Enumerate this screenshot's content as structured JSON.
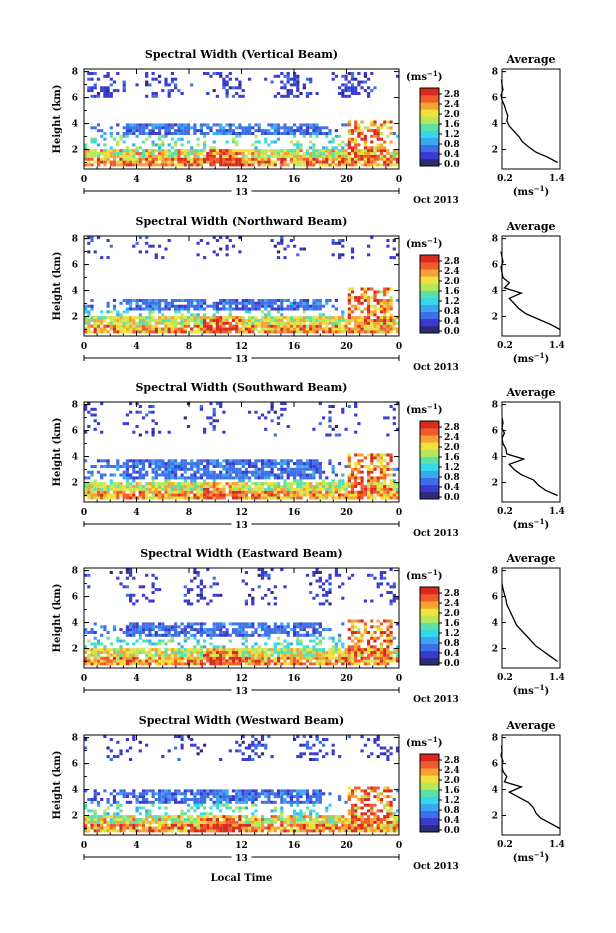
{
  "colors": {
    "scale": [
      "#2b2b77",
      "#3a3ad0",
      "#3f6fe8",
      "#3aa8f0",
      "#35d7e8",
      "#5de0a8",
      "#b8e85a",
      "#f2e13a",
      "#f7a133",
      "#f15b2c",
      "#d92a1e"
    ]
  },
  "labels": {
    "height_axis": "Height (km)",
    "unit": "(ms",
    "unit_sup": "−1",
    "unit_close": ")",
    "average_title": "Average",
    "date": "Oct 2013",
    "day": "13",
    "local_time": "Local Time",
    "cbar_ticks": [
      "2.8",
      "2.4",
      "2.0",
      "1.6",
      "1.2",
      "0.8",
      "0.4",
      "0.0"
    ]
  },
  "chart_data": [
    {
      "type": "heatmap",
      "title": "Spectral Width (Vertical Beam)",
      "xlabel": "",
      "ylabel": "Height (km)",
      "x_ticks": [
        "0",
        "4",
        "8",
        "12",
        "16",
        "20",
        "0"
      ],
      "y_ticks": [
        "8",
        "6",
        "4",
        "2"
      ],
      "xlim": [
        0,
        24
      ],
      "ylim": [
        0.5,
        8.2
      ],
      "colorbar": {
        "unit": "ms^-1",
        "range": [
          0.0,
          2.8
        ]
      },
      "average_profile": {
        "xlim": [
          0.2,
          1.4
        ],
        "ylim": [
          0.5,
          8.2
        ],
        "x_ticks": [
          "0.2",
          "1.4"
        ],
        "y_ticks": [
          "8",
          "6",
          "4",
          "2"
        ],
        "height": [
          1.0,
          1.4,
          1.8,
          2.2,
          2.6,
          3.0,
          3.4,
          3.8,
          4.2,
          4.6,
          5.0,
          5.4,
          5.8,
          6.2,
          6.6,
          7.0,
          7.4
        ],
        "width": [
          1.35,
          1.15,
          0.9,
          0.75,
          0.62,
          0.55,
          0.45,
          0.35,
          0.3,
          0.32,
          0.28,
          0.25,
          0.2,
          0.18,
          0.22,
          0.2,
          0.19
        ]
      }
    },
    {
      "type": "heatmap",
      "title": "Spectral Width (Northward Beam)",
      "xlabel": "",
      "ylabel": "Height (km)",
      "x_ticks": [
        "0",
        "4",
        "8",
        "12",
        "16",
        "20",
        "0"
      ],
      "y_ticks": [
        "8",
        "6",
        "4",
        "2"
      ],
      "xlim": [
        0,
        24
      ],
      "ylim": [
        0.5,
        8.2
      ],
      "colorbar": {
        "unit": "ms^-1",
        "range": [
          0.0,
          2.8
        ]
      },
      "average_profile": {
        "xlim": [
          0.2,
          1.4
        ],
        "ylim": [
          0.5,
          8.2
        ],
        "x_ticks": [
          "0.2",
          "1.4"
        ],
        "y_ticks": [
          "8",
          "6",
          "4",
          "2"
        ],
        "height": [
          1.0,
          1.4,
          1.8,
          2.2,
          2.6,
          3.0,
          3.4,
          3.8,
          4.2,
          4.6,
          5.0,
          5.4,
          5.8,
          6.2,
          6.6,
          7.0
        ],
        "width": [
          1.4,
          1.2,
          0.95,
          0.7,
          0.55,
          0.45,
          0.35,
          0.6,
          0.25,
          0.35,
          0.22,
          0.2,
          0.18,
          0.22,
          0.2,
          0.18
        ]
      }
    },
    {
      "type": "heatmap",
      "title": "Spectral Width (Southward Beam)",
      "xlabel": "",
      "ylabel": "Height (km)",
      "x_ticks": [
        "0",
        "4",
        "8",
        "12",
        "16",
        "20",
        "0"
      ],
      "y_ticks": [
        "8",
        "6",
        "4",
        "2"
      ],
      "xlim": [
        0,
        24
      ],
      "ylim": [
        0.5,
        8.2
      ],
      "colorbar": {
        "unit": "ms^-1",
        "range": [
          0.0,
          2.8
        ]
      },
      "average_profile": {
        "xlim": [
          0.2,
          1.4
        ],
        "ylim": [
          0.5,
          8.2
        ],
        "x_ticks": [
          "0.2",
          "1.4"
        ],
        "y_ticks": [
          "8",
          "6",
          "4",
          "2"
        ],
        "height": [
          1.0,
          1.4,
          1.8,
          2.2,
          2.6,
          3.0,
          3.4,
          3.8,
          4.2,
          4.6,
          5.0,
          5.4,
          5.8,
          6.2,
          6.6,
          7.0
        ],
        "width": [
          1.35,
          1.1,
          0.95,
          0.85,
          0.6,
          0.45,
          0.35,
          0.65,
          0.3,
          0.28,
          0.22,
          0.2,
          0.25,
          0.2,
          0.22,
          0.2
        ]
      }
    },
    {
      "type": "heatmap",
      "title": "Spectral Width (Eastward Beam)",
      "xlabel": "",
      "ylabel": "Height (km)",
      "x_ticks": [
        "0",
        "4",
        "8",
        "12",
        "16",
        "20",
        "0"
      ],
      "y_ticks": [
        "8",
        "6",
        "4",
        "2"
      ],
      "xlim": [
        0,
        24
      ],
      "ylim": [
        0.5,
        8.2
      ],
      "colorbar": {
        "unit": "ms^-1",
        "range": [
          0.0,
          2.8
        ]
      },
      "average_profile": {
        "xlim": [
          0.2,
          1.4
        ],
        "ylim": [
          0.5,
          8.2
        ],
        "x_ticks": [
          "0.2",
          "1.4"
        ],
        "y_ticks": [
          "8",
          "6",
          "4",
          "2"
        ],
        "height": [
          1.0,
          1.4,
          1.8,
          2.2,
          2.6,
          3.0,
          3.4,
          3.8,
          4.2,
          4.6,
          5.0,
          5.4,
          5.8,
          6.2,
          6.6,
          7.0
        ],
        "width": [
          1.35,
          1.2,
          1.05,
          0.9,
          0.8,
          0.7,
          0.6,
          0.5,
          0.45,
          0.4,
          0.35,
          0.3,
          0.28,
          0.25,
          0.22,
          0.2
        ]
      }
    },
    {
      "type": "heatmap",
      "title": "Spectral Width (Westward Beam)",
      "xlabel": "Local Time",
      "ylabel": "Height (km)",
      "x_ticks": [
        "0",
        "4",
        "8",
        "12",
        "16",
        "20",
        "0"
      ],
      "y_ticks": [
        "8",
        "6",
        "4",
        "2"
      ],
      "xlim": [
        0,
        24
      ],
      "ylim": [
        0.5,
        8.2
      ],
      "colorbar": {
        "unit": "ms^-1",
        "range": [
          0.0,
          2.8
        ]
      },
      "average_profile": {
        "xlim": [
          0.2,
          1.4
        ],
        "ylim": [
          0.5,
          8.2
        ],
        "x_ticks": [
          "0.2",
          "1.4"
        ],
        "y_ticks": [
          "8",
          "6",
          "4",
          "2"
        ],
        "height": [
          1.0,
          1.4,
          1.8,
          2.2,
          2.6,
          3.0,
          3.4,
          3.8,
          4.2,
          4.6,
          5.0,
          5.4,
          5.8,
          6.2,
          6.6,
          7.0,
          7.4
        ],
        "width": [
          1.4,
          1.2,
          1.0,
          0.9,
          0.85,
          0.75,
          0.55,
          0.35,
          0.6,
          0.25,
          0.3,
          0.22,
          0.2,
          0.22,
          0.18,
          0.2,
          0.19
        ]
      }
    }
  ]
}
